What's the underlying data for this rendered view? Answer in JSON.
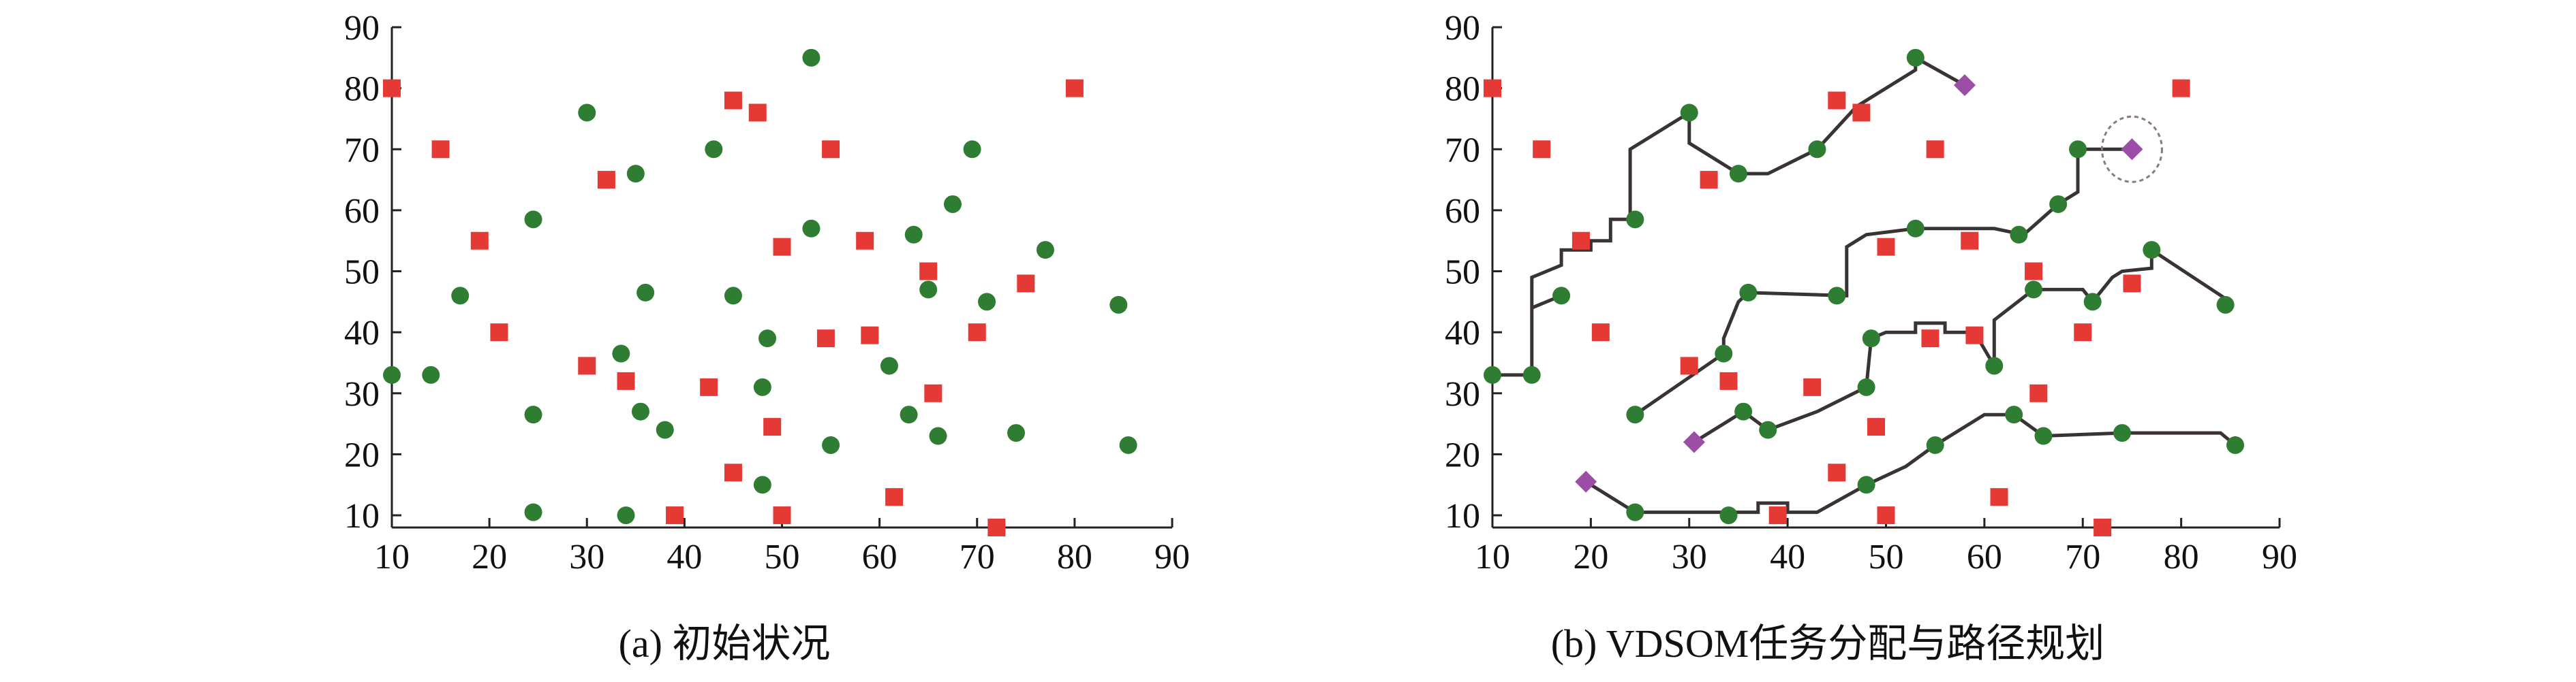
{
  "colors": {
    "agent": "#2f7d32",
    "task": "#e53935",
    "depot": "#9c4ea6",
    "route": "#3a3333",
    "axis": "#222222"
  },
  "chart_data": [
    {
      "type": "scatter",
      "caption": "(a) 初始状况",
      "title": "",
      "xlabel": "",
      "ylabel": "",
      "xlim": [
        10,
        90
      ],
      "ylim": [
        8,
        90
      ],
      "xticks": [
        "10",
        "20",
        "30",
        "40",
        "50",
        "60",
        "70",
        "80",
        "90"
      ],
      "yticks": [
        "10",
        "20",
        "30",
        "40",
        "50",
        "60",
        "70",
        "80",
        "90"
      ],
      "series": [
        {
          "marker": "circle",
          "color": "#2f7d32",
          "points": [
            [
              10,
              33
            ],
            [
              14,
              33
            ],
            [
              17,
              46
            ],
            [
              24.5,
              58.5
            ],
            [
              24.5,
              26.5
            ],
            [
              24.5,
              10.5
            ],
            [
              30,
              76
            ],
            [
              33.5,
              36.5
            ],
            [
              35,
              66
            ],
            [
              35.5,
              27
            ],
            [
              36,
              46.5
            ],
            [
              38,
              24
            ],
            [
              34,
              10
            ],
            [
              43,
              70
            ],
            [
              45,
              46
            ],
            [
              48,
              31
            ],
            [
              48.5,
              39
            ],
            [
              48,
              15
            ],
            [
              53,
              85
            ],
            [
              53,
              57
            ],
            [
              55,
              21.5
            ],
            [
              61,
              34.5
            ],
            [
              63,
              26.5
            ],
            [
              63.5,
              56
            ],
            [
              65,
              47
            ],
            [
              66,
              23
            ],
            [
              67.5,
              61
            ],
            [
              69.5,
              70
            ],
            [
              71,
              45
            ],
            [
              74,
              23.5
            ],
            [
              77,
              53.5
            ],
            [
              84.5,
              44.5
            ],
            [
              85.5,
              21.5
            ]
          ]
        },
        {
          "marker": "square",
          "color": "#e53935",
          "points": [
            [
              10,
              80
            ],
            [
              15,
              70
            ],
            [
              19,
              55
            ],
            [
              21,
              40
            ],
            [
              30,
              34.5
            ],
            [
              32,
              65
            ],
            [
              34,
              32
            ],
            [
              39,
              10
            ],
            [
              42.5,
              31
            ],
            [
              45,
              78
            ],
            [
              45,
              17
            ],
            [
              47.5,
              76
            ],
            [
              49,
              24.5
            ],
            [
              50,
              54
            ],
            [
              50,
              10
            ],
            [
              54.5,
              39
            ],
            [
              55,
              70
            ],
            [
              58.5,
              55
            ],
            [
              59,
              39.5
            ],
            [
              61.5,
              13
            ],
            [
              65,
              50
            ],
            [
              65.5,
              30
            ],
            [
              70,
              40
            ],
            [
              72,
              8
            ],
            [
              75,
              48
            ],
            [
              80,
              80
            ]
          ]
        }
      ]
    },
    {
      "type": "scatter",
      "caption": "(b) VDSOM任务分配与路径规划",
      "title": "",
      "xlabel": "",
      "ylabel": "",
      "xlim": [
        10,
        90
      ],
      "ylim": [
        8,
        90
      ],
      "xticks": [
        "10",
        "20",
        "30",
        "40",
        "50",
        "60",
        "70",
        "80",
        "90"
      ],
      "yticks": [
        "10",
        "20",
        "30",
        "40",
        "50",
        "60",
        "70",
        "80",
        "90"
      ],
      "series": [
        {
          "marker": "circle",
          "color": "#2f7d32",
          "points": [
            [
              10,
              33
            ],
            [
              14,
              33
            ],
            [
              17,
              46
            ],
            [
              24.5,
              58.5
            ],
            [
              24.5,
              26.5
            ],
            [
              24.5,
              10.5
            ],
            [
              30,
              76
            ],
            [
              33.5,
              36.5
            ],
            [
              35,
              66
            ],
            [
              35.5,
              27
            ],
            [
              36,
              46.5
            ],
            [
              38,
              24
            ],
            [
              34,
              10
            ],
            [
              43,
              70
            ],
            [
              45,
              46
            ],
            [
              48,
              31
            ],
            [
              48.5,
              39
            ],
            [
              48,
              15
            ],
            [
              53,
              85
            ],
            [
              53,
              57
            ],
            [
              55,
              21.5
            ],
            [
              61,
              34.5
            ],
            [
              63,
              26.5
            ],
            [
              63.5,
              56
            ],
            [
              65,
              47
            ],
            [
              66,
              23
            ],
            [
              67.5,
              61
            ],
            [
              69.5,
              70
            ],
            [
              71,
              45
            ],
            [
              74,
              23.5
            ],
            [
              77,
              53.5
            ],
            [
              84.5,
              44.5
            ],
            [
              85.5,
              21.5
            ]
          ]
        },
        {
          "marker": "square",
          "color": "#e53935",
          "points": [
            [
              10,
              80
            ],
            [
              15,
              70
            ],
            [
              19,
              55
            ],
            [
              21,
              40
            ],
            [
              30,
              34.5
            ],
            [
              32,
              65
            ],
            [
              34,
              32
            ],
            [
              39,
              10
            ],
            [
              42.5,
              31
            ],
            [
              45,
              78
            ],
            [
              45,
              17
            ],
            [
              47.5,
              76
            ],
            [
              49,
              24.5
            ],
            [
              50,
              54
            ],
            [
              50,
              10
            ],
            [
              54.5,
              39
            ],
            [
              55,
              70
            ],
            [
              58.5,
              55
            ],
            [
              59,
              39.5
            ],
            [
              61.5,
              13
            ],
            [
              65,
              50
            ],
            [
              65.5,
              30
            ],
            [
              70,
              40
            ],
            [
              72,
              8
            ],
            [
              75,
              48
            ],
            [
              80,
              80
            ]
          ]
        },
        {
          "marker": "diamond",
          "color": "#9c4ea6",
          "points": [
            [
              58,
              80.5
            ],
            [
              75,
              70
            ],
            [
              30.5,
              22
            ],
            [
              19.5,
              15.5
            ]
          ]
        }
      ],
      "routes": [
        [
          [
            58,
            80.5
          ],
          [
            53,
            85
          ],
          [
            53,
            83
          ],
          [
            47,
            77
          ],
          [
            43,
            70
          ],
          [
            38,
            66
          ],
          [
            35,
            66
          ],
          [
            30,
            71
          ],
          [
            30,
            76
          ],
          [
            24,
            70
          ],
          [
            24,
            58.5
          ],
          [
            22,
            58.5
          ],
          [
            22,
            55
          ],
          [
            20,
            55
          ],
          [
            20,
            53.5
          ],
          [
            17,
            53.5
          ],
          [
            17,
            51
          ],
          [
            14,
            49
          ],
          [
            14,
            44
          ],
          [
            17,
            46
          ],
          [
            14,
            44
          ],
          [
            14,
            33
          ],
          [
            10,
            33
          ]
        ],
        [
          [
            75,
            70
          ],
          [
            69.5,
            70
          ],
          [
            69.5,
            63
          ],
          [
            67.5,
            61
          ],
          [
            64,
            56
          ],
          [
            61,
            57
          ],
          [
            53,
            57
          ],
          [
            48,
            56
          ],
          [
            46,
            54
          ],
          [
            46,
            46
          ],
          [
            36,
            46.5
          ],
          [
            35,
            45
          ],
          [
            33.5,
            39
          ],
          [
            33.5,
            36.5
          ],
          [
            24.5,
            26.5
          ]
        ],
        [
          [
            30.5,
            22
          ],
          [
            35.5,
            27
          ],
          [
            38,
            24
          ],
          [
            43,
            27
          ],
          [
            48,
            31
          ],
          [
            48.5,
            39
          ],
          [
            50,
            40
          ],
          [
            53,
            40
          ],
          [
            53,
            41.5
          ],
          [
            56,
            41.5
          ],
          [
            56,
            40
          ],
          [
            59,
            40
          ],
          [
            61,
            34.5
          ],
          [
            61,
            42
          ],
          [
            65,
            47
          ],
          [
            70,
            47
          ],
          [
            71,
            45
          ],
          [
            73,
            49
          ],
          [
            74,
            50
          ],
          [
            77,
            50.5
          ],
          [
            77,
            53.5
          ],
          [
            85,
            45
          ]
        ],
        [
          [
            19.5,
            15.5
          ],
          [
            24.5,
            10.5
          ],
          [
            33,
            10.5
          ],
          [
            37,
            10.5
          ],
          [
            37,
            12
          ],
          [
            40,
            12
          ],
          [
            40,
            10.5
          ],
          [
            43,
            10.5
          ],
          [
            48,
            15
          ],
          [
            52,
            18
          ],
          [
            55,
            21.5
          ],
          [
            60,
            26.5
          ],
          [
            63,
            26.5
          ],
          [
            66,
            23
          ],
          [
            74,
            23.5
          ],
          [
            84,
            23.5
          ],
          [
            85.5,
            21.5
          ]
        ]
      ],
      "highlight": [
        75,
        70
      ]
    }
  ]
}
